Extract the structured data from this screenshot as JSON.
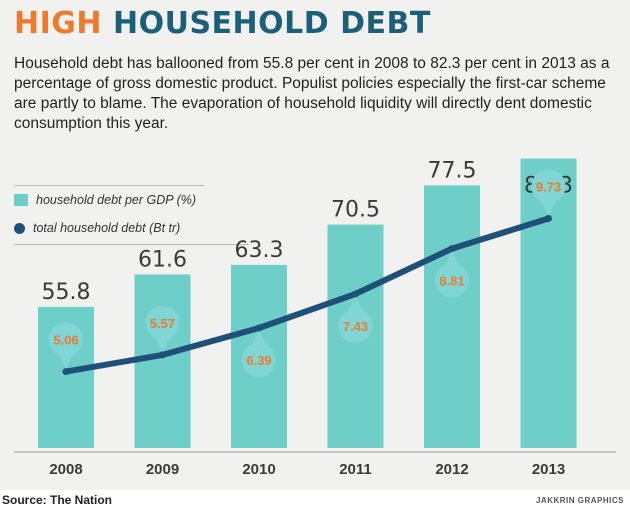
{
  "title": {
    "part1": "HIGH",
    "part2": "HOUSEHOLD DEBT"
  },
  "description": "Household debt has ballooned from 55.8 per cent in 2008 to 82.3 per cent in 2013 as a percentage of gross domestic product. Populist policies especially the first-car scheme are partly to blame. The evaporation of household liquidity will directly dent domestic consumption this year.",
  "legend": {
    "bar_label": "household debt per GDP (%)",
    "line_label": "total household debt (Bt tr)"
  },
  "source": "Source: The Nation",
  "credit": "JAKKRIN GRAPHICS",
  "colors": {
    "bar": "#6ecfc9",
    "line": "#1e5078",
    "marker": "#7fd6d5",
    "orange": "#ee7a2e",
    "title_blue": "#1b5f78"
  },
  "chart_data": {
    "type": "bar",
    "categories": [
      "2008",
      "2009",
      "2010",
      "2011",
      "2012",
      "2013"
    ],
    "series": [
      {
        "name": "household debt per GDP (%)",
        "type": "bar",
        "values": [
          55.8,
          61.6,
          63.3,
          70.5,
          77.5,
          82.3
        ]
      },
      {
        "name": "total household debt (Bt tr)",
        "type": "line",
        "values": [
          5.06,
          5.57,
          6.39,
          7.43,
          8.81,
          9.73
        ]
      }
    ],
    "bar_labels": [
      "55.8",
      "61.6",
      "63.3",
      "70.5",
      "77.5",
      "82.3"
    ],
    "line_labels": [
      "5.06",
      "5.57",
      "6.39",
      "7.43",
      "8.81",
      "9.73"
    ],
    "grid": false,
    "legend_position": "top-left"
  }
}
